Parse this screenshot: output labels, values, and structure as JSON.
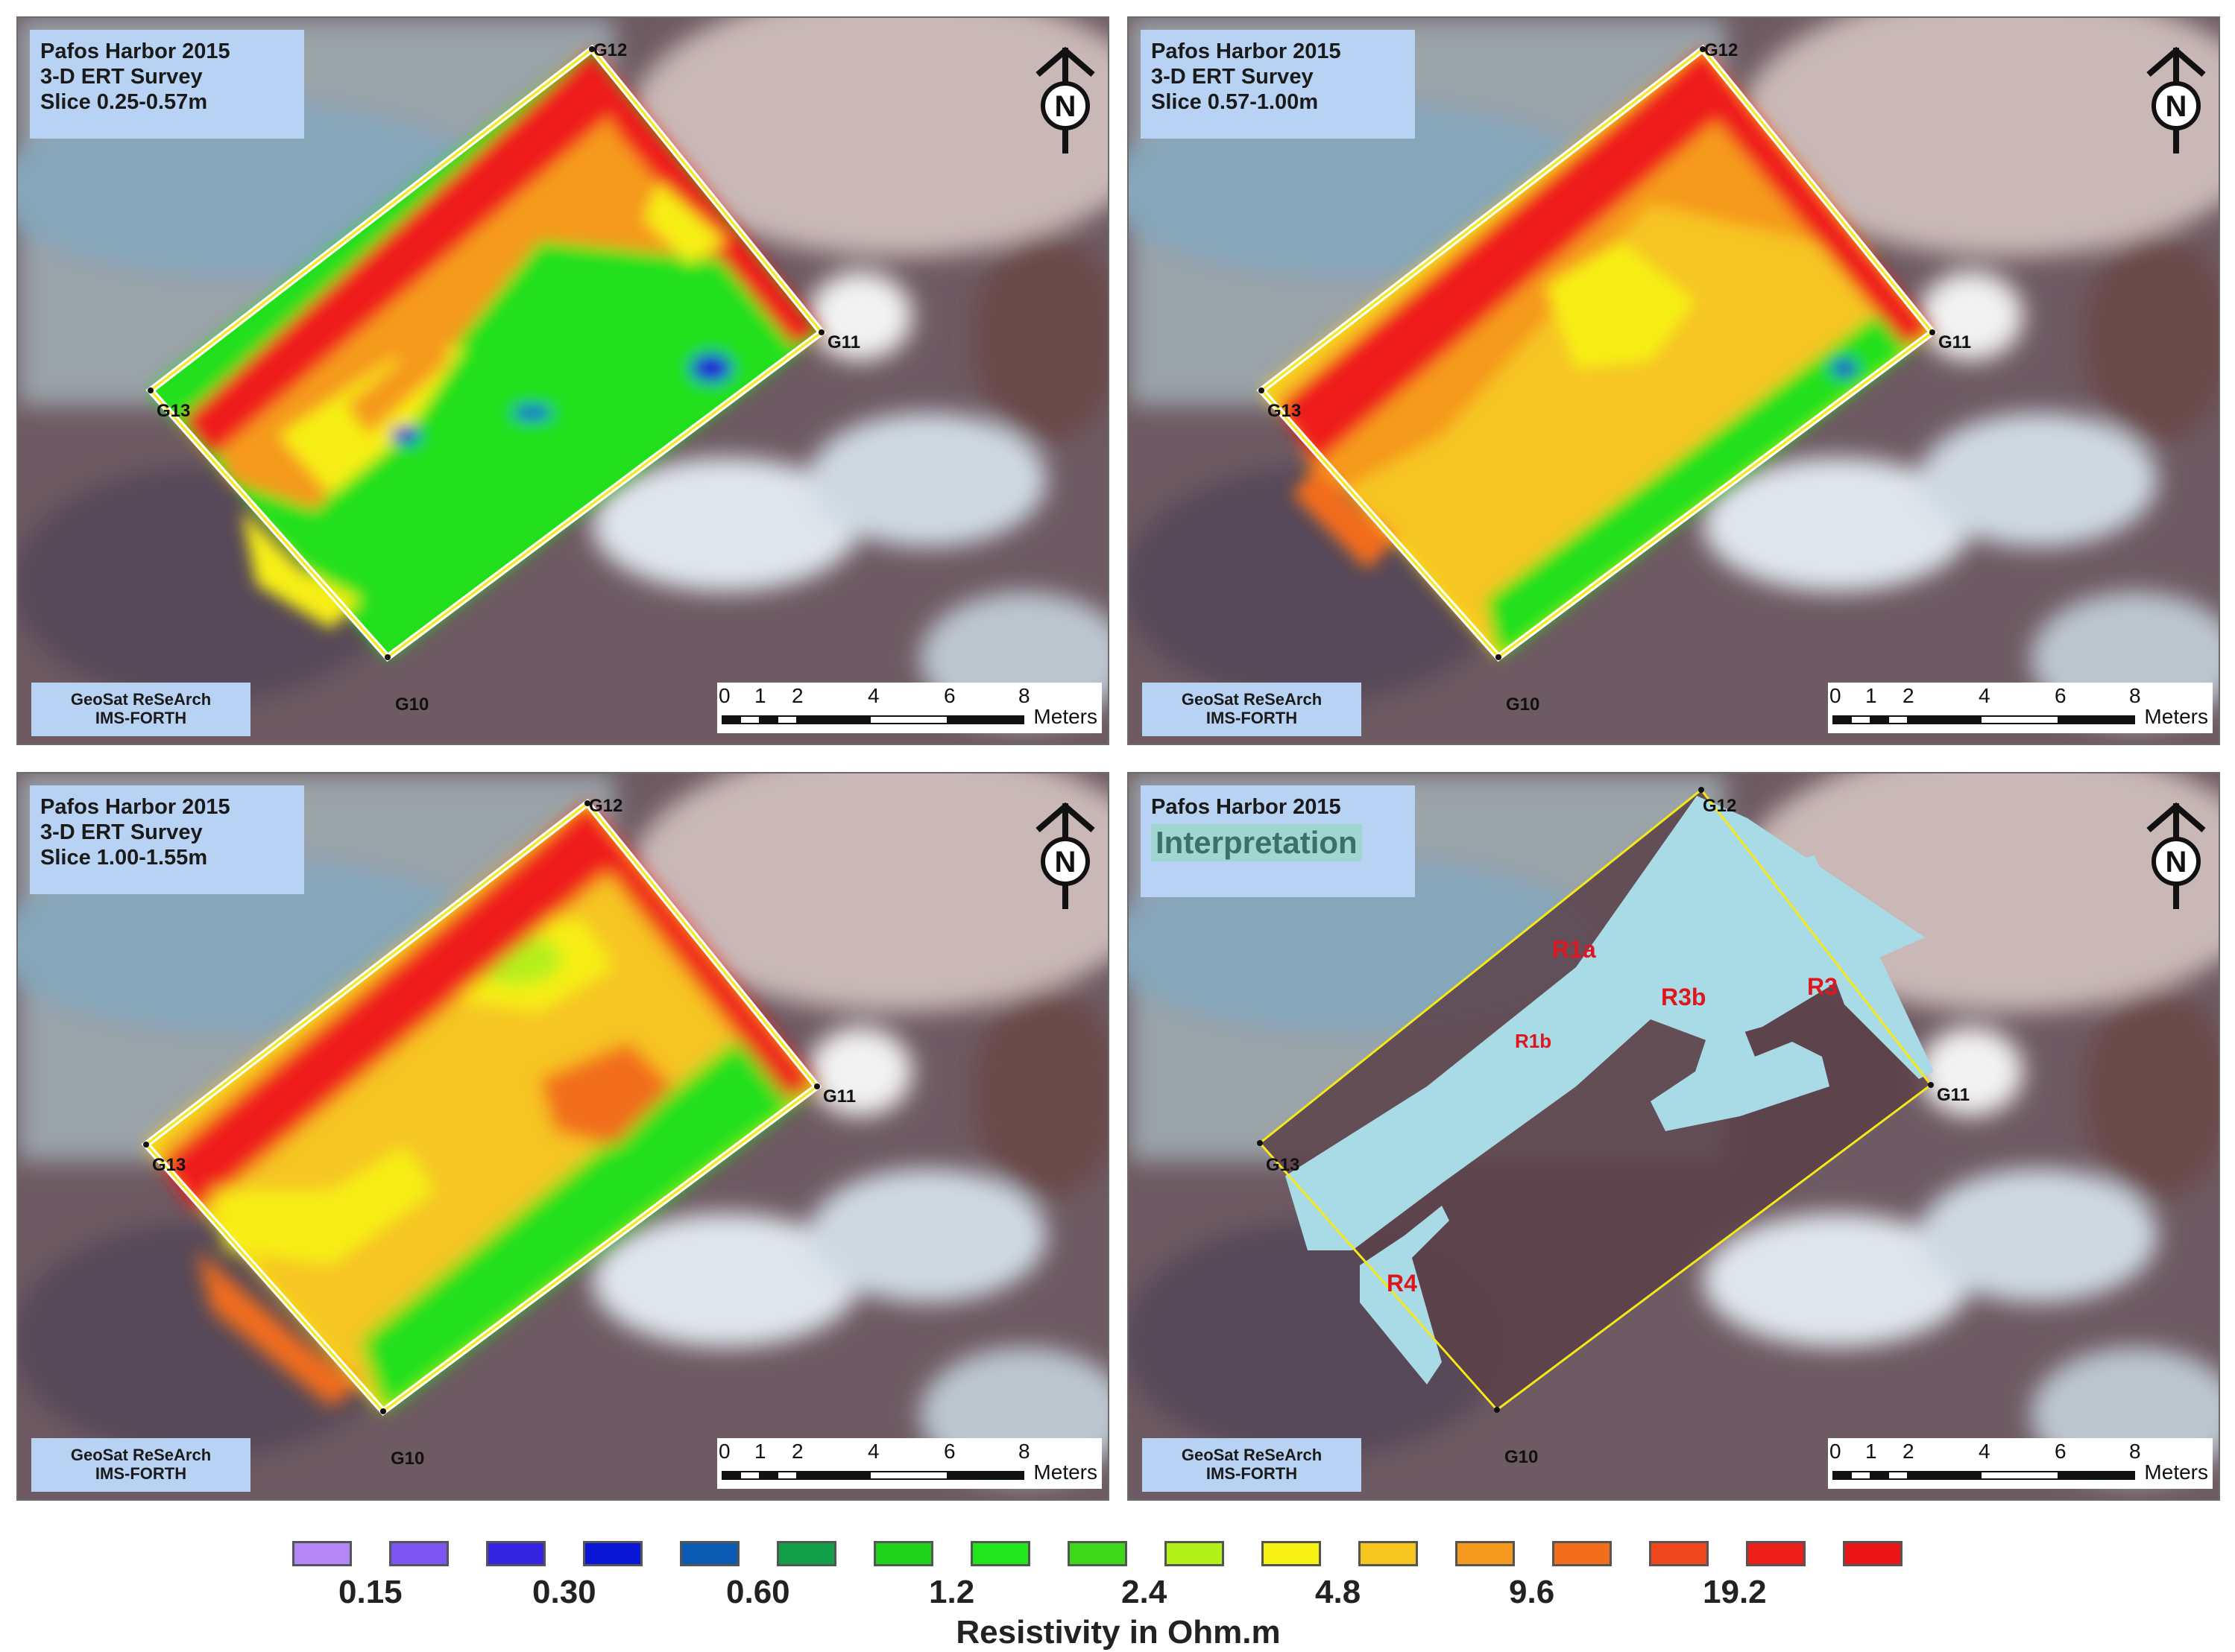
{
  "panels": [
    {
      "title_lines": [
        "Pafos Harbor 2015",
        "3-D ERT Survey",
        "Slice 0.25-0.57m"
      ],
      "interpretation": ""
    },
    {
      "title_lines": [
        "Pafos Harbor 2015",
        "3-D ERT Survey",
        "Slice 0.57-1.00m"
      ],
      "interpretation": ""
    },
    {
      "title_lines": [
        "Pafos Harbor 2015",
        "3-D ERT Survey",
        "Slice 1.00-1.55m"
      ],
      "interpretation": ""
    },
    {
      "title_lines": [
        "Pafos Harbor 2015",
        "",
        ""
      ],
      "interpretation": "Interpretation"
    }
  ],
  "credit": {
    "line1": "GeoSat ReSeArch",
    "line2": "IMS-FORTH"
  },
  "scale": {
    "ticks": [
      "0",
      "1",
      "2",
      "4",
      "6",
      "8"
    ],
    "unit": "Meters"
  },
  "north_label": "N",
  "grid_points": {
    "g10": "G10",
    "g11": "G11",
    "g12": "G12",
    "g13": "G13"
  },
  "regions": {
    "r1a": "R1a",
    "r1b": "R1b",
    "r3": "R3",
    "r3b": "R3b",
    "r4": "R4"
  },
  "colors": {
    "very_low": "#9d6cf4",
    "low": "#2418d8",
    "mid_low": "#0b8a3a",
    "green": "#21e01a",
    "yellow": "#f7ef12",
    "orange": "#f59a1f",
    "red": "#ef1a1a",
    "interp_fill": "#a9dbe6",
    "boundary": "#f4e71a"
  },
  "legend": {
    "title": "Resistivity in Ohm.m",
    "labels": [
      "0.15",
      "0.30",
      "0.60",
      "1.2",
      "2.4",
      "4.8",
      "9.6",
      "19.2"
    ],
    "swatches": [
      "#b388f6",
      "#7c54f0",
      "#3524e0",
      "#0a16d6",
      "#0b5ab4",
      "#13a048",
      "#1fd21a",
      "#22e51b",
      "#3dd819",
      "#b4f01a",
      "#f8f214",
      "#f6c520",
      "#f59a1f",
      "#f26d1c",
      "#f1471c",
      "#ee1f1a",
      "#ec1515"
    ]
  }
}
